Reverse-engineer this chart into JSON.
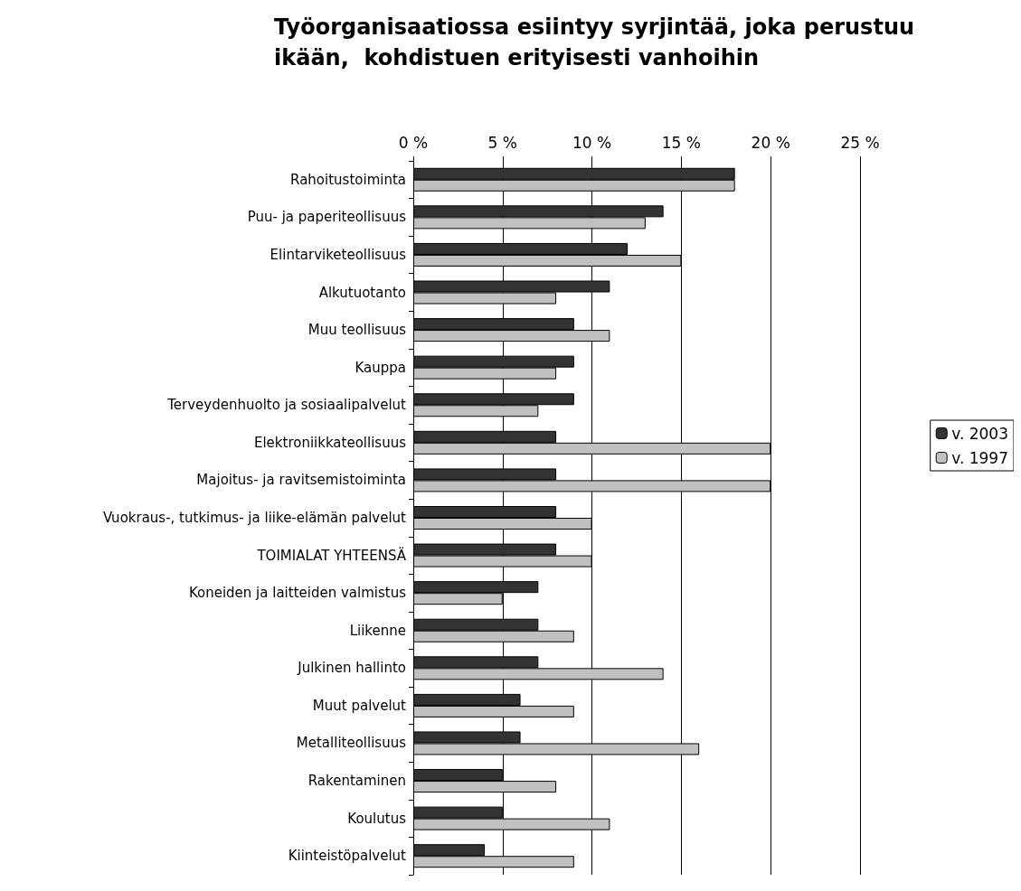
{
  "chart_data": {
    "type": "bar",
    "orientation": "horizontal",
    "title": "Työorganisaatiossa esiintyy syrjintää, joka perustuu\nikään,  kohdistuen erityisesti vanhoihin",
    "categories": [
      "Rahoitustoiminta",
      "Puu- ja paperiteollisuus",
      "Elintarviketeollisuus",
      "Alkutuotanto",
      "Muu teollisuus",
      "Kauppa",
      "Terveydenhuolto ja sosiaalipalvelut",
      "Elektroniikkateollisuus",
      "Majoitus- ja ravitsemistoiminta",
      "Vuokraus-, tutkimus- ja liike-elämän palvelut",
      "TOIMIALAT YHTEENSÄ",
      "Koneiden ja laitteiden valmistus",
      "Liikenne",
      "Julkinen hallinto",
      "Muut palvelut",
      "Metalliteollisuus",
      "Rakentaminen",
      "Koulutus",
      "Kiinteistöpalvelut"
    ],
    "series": [
      {
        "name": "v. 2003",
        "color": "#333333",
        "values": [
          18,
          14,
          12,
          11,
          9,
          9,
          9,
          8,
          8,
          8,
          8,
          7,
          7,
          7,
          6,
          6,
          5,
          5,
          4
        ]
      },
      {
        "name": "v. 1997",
        "color": "#c0c0c0",
        "values": [
          18,
          13,
          15,
          8,
          11,
          8,
          7,
          20,
          20,
          10,
          10,
          5,
          9,
          14,
          9,
          16,
          8,
          11,
          9
        ]
      }
    ],
    "xlim": [
      0,
      25
    ],
    "xticks": [
      {
        "value": 0,
        "label": "0 %"
      },
      {
        "value": 5,
        "label": "5 %"
      },
      {
        "value": 10,
        "label": "10 %"
      },
      {
        "value": 15,
        "label": "15 %"
      },
      {
        "value": 20,
        "label": "20 %"
      },
      {
        "value": 25,
        "label": "25 %"
      }
    ],
    "grid": "x",
    "legend": "right"
  }
}
